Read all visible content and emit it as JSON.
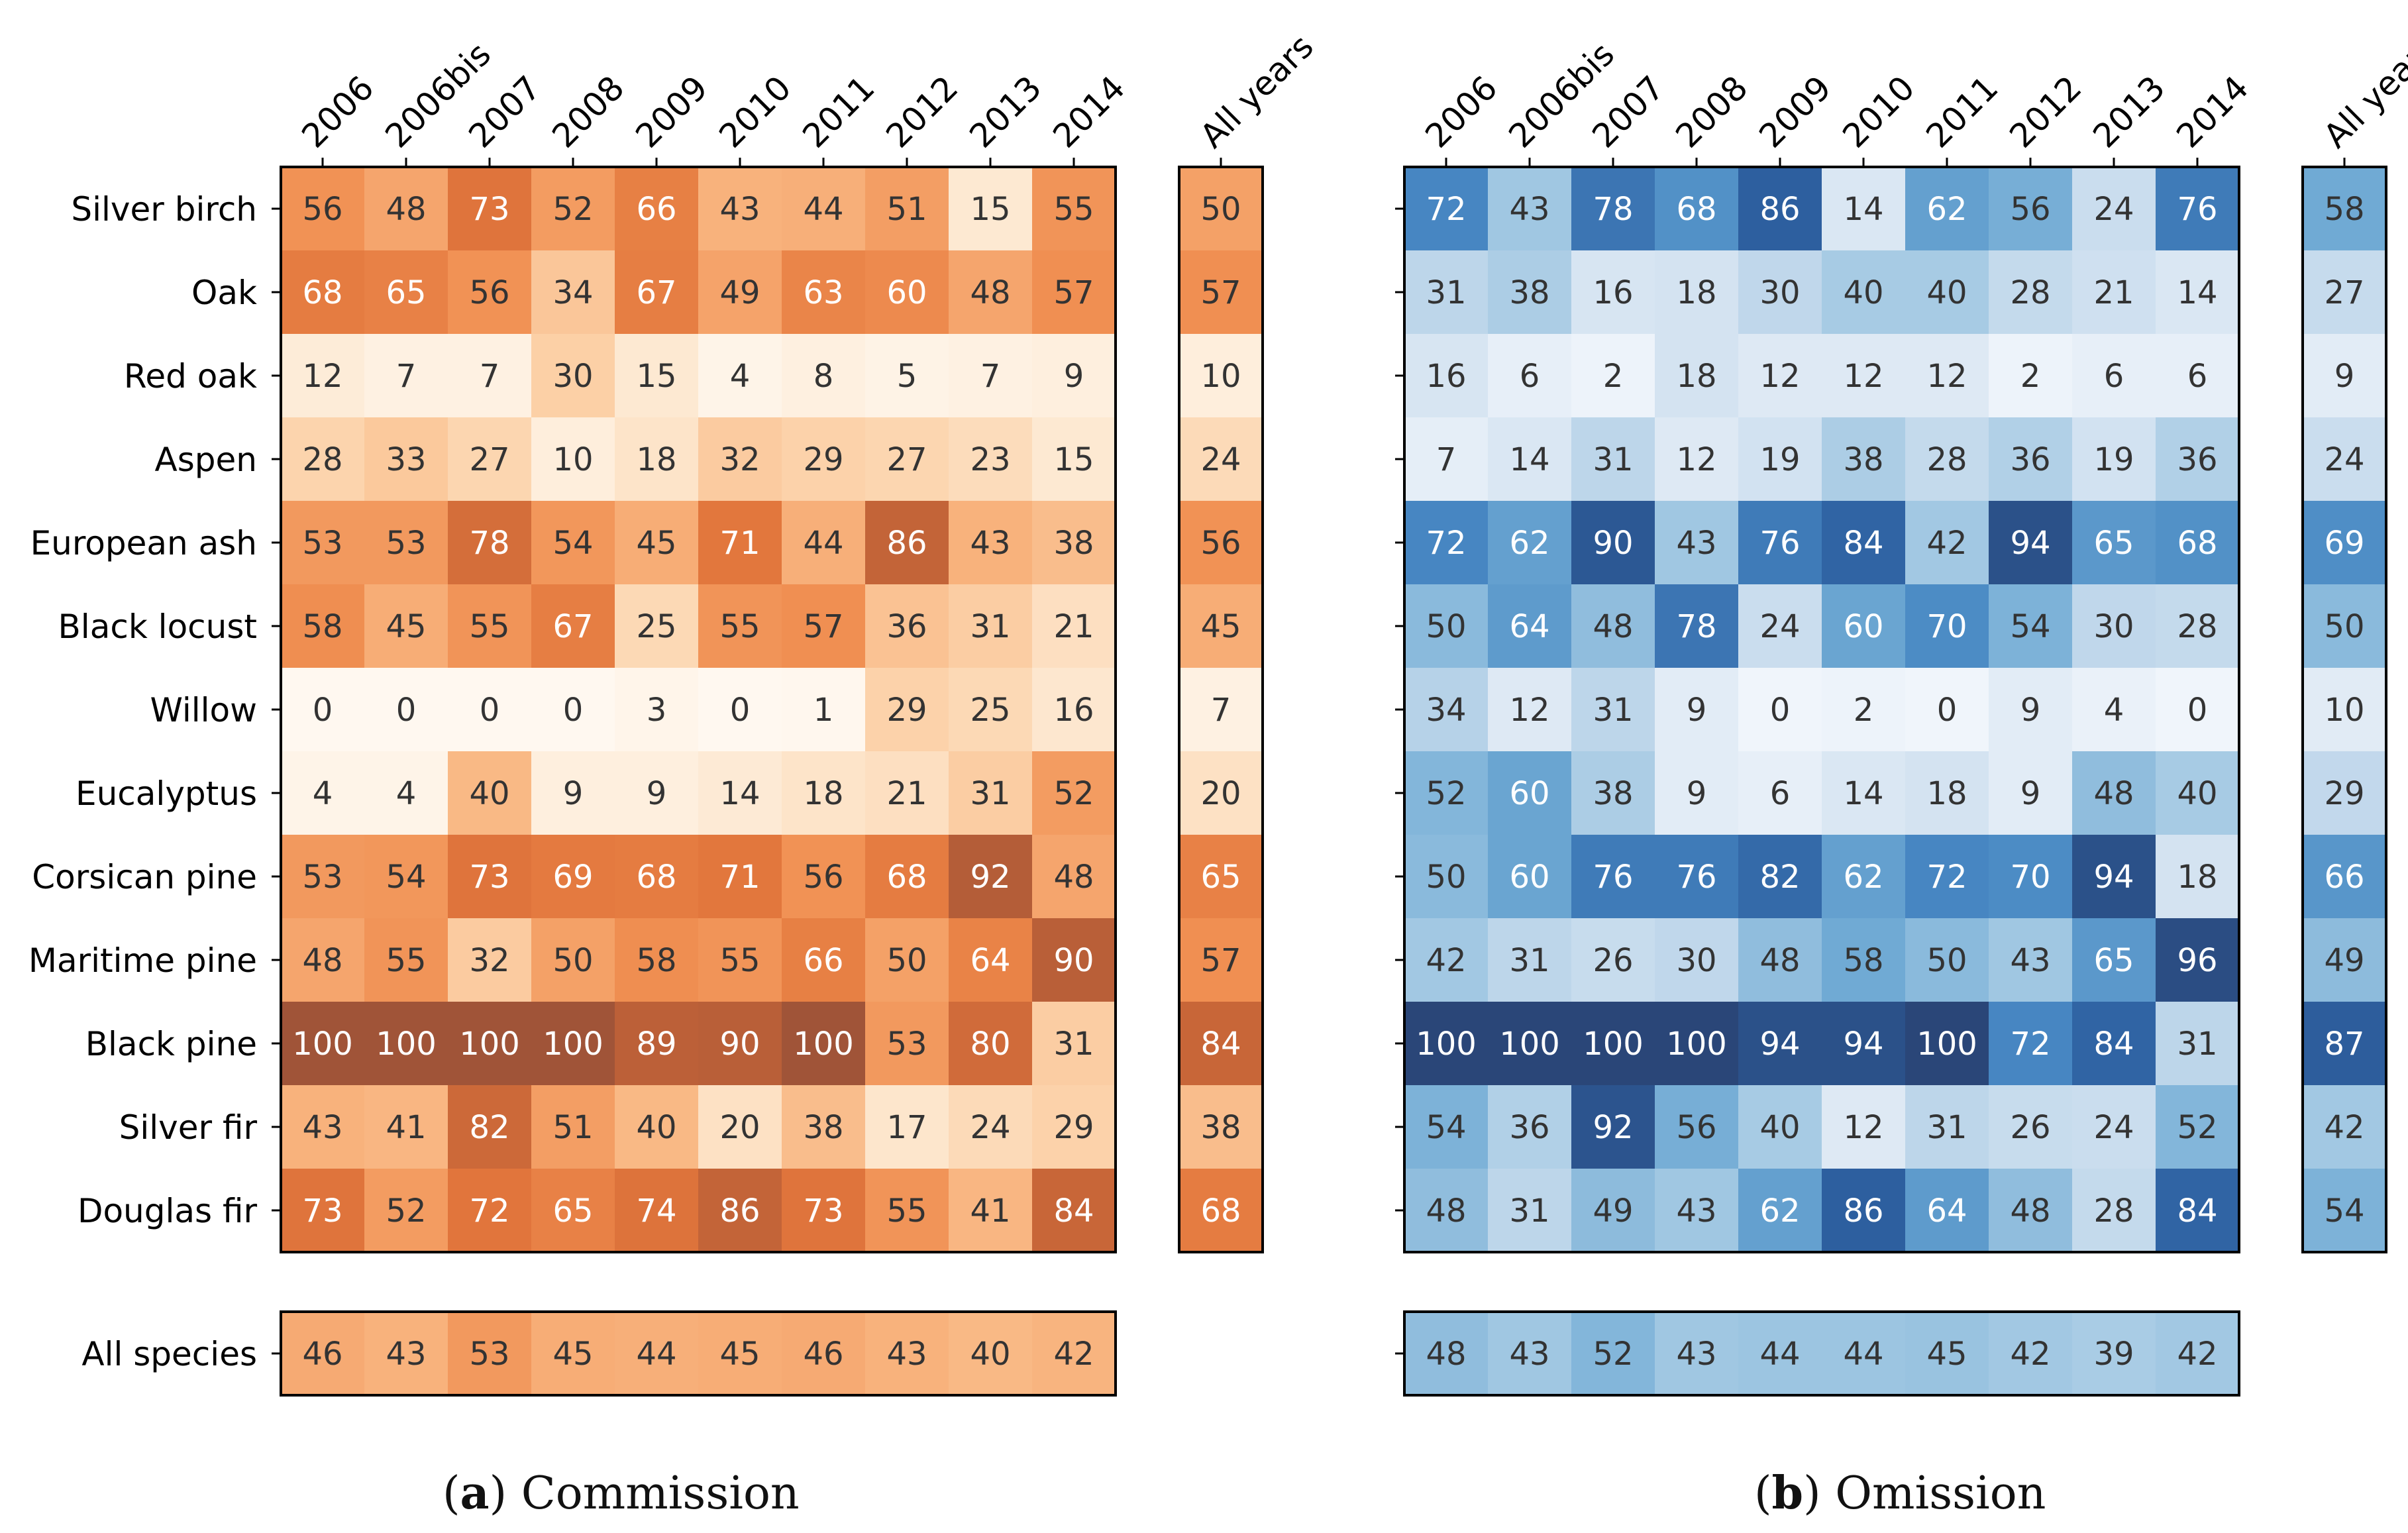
{
  "chart_data": [
    {
      "type": "heatmap",
      "panel": "a",
      "title": "Commission",
      "colormap": "oranges",
      "row_labels": [
        "Silver birch",
        "Oak",
        "Red oak",
        "Aspen",
        "European ash",
        "Black locust",
        "Willow",
        "Eucalyptus",
        "Corsican pine",
        "Maritime pine",
        "Black pine",
        "Silver fir",
        "Douglas fir"
      ],
      "col_labels": [
        "2006",
        "2006bis",
        "2007",
        "2008",
        "2009",
        "2010",
        "2011",
        "2012",
        "2013",
        "2014"
      ],
      "values": [
        [
          56,
          48,
          73,
          52,
          66,
          43,
          44,
          51,
          15,
          55
        ],
        [
          68,
          65,
          56,
          34,
          67,
          49,
          63,
          60,
          48,
          57
        ],
        [
          12,
          7,
          7,
          30,
          15,
          4,
          8,
          5,
          7,
          9
        ],
        [
          28,
          33,
          27,
          10,
          18,
          32,
          29,
          27,
          23,
          15
        ],
        [
          53,
          53,
          78,
          54,
          45,
          71,
          44,
          86,
          43,
          38
        ],
        [
          58,
          45,
          55,
          67,
          25,
          55,
          57,
          36,
          31,
          21
        ],
        [
          0,
          0,
          0,
          0,
          3,
          0,
          1,
          29,
          25,
          16
        ],
        [
          4,
          4,
          40,
          9,
          9,
          14,
          18,
          21,
          31,
          52
        ],
        [
          53,
          54,
          73,
          69,
          68,
          71,
          56,
          68,
          92,
          48
        ],
        [
          48,
          55,
          32,
          50,
          58,
          55,
          66,
          50,
          64,
          90
        ],
        [
          100,
          100,
          100,
          100,
          89,
          90,
          100,
          53,
          80,
          31
        ],
        [
          43,
          41,
          82,
          51,
          40,
          20,
          38,
          17,
          24,
          29
        ],
        [
          73,
          52,
          72,
          65,
          74,
          86,
          73,
          55,
          41,
          84
        ]
      ],
      "all_years_label": "All years",
      "all_years": [
        50,
        57,
        10,
        24,
        56,
        45,
        7,
        20,
        65,
        57,
        84,
        38,
        68
      ],
      "all_species_label": "All species",
      "all_species": [
        46,
        43,
        53,
        45,
        44,
        45,
        46,
        43,
        40,
        42
      ],
      "value_range": [
        0,
        100
      ]
    },
    {
      "type": "heatmap",
      "panel": "b",
      "title": "Omission",
      "colormap": "blues",
      "row_labels": [
        "Silver birch",
        "Oak",
        "Red oak",
        "Aspen",
        "European ash",
        "Black locust",
        "Willow",
        "Eucalyptus",
        "Corsican pine",
        "Maritime pine",
        "Black pine",
        "Silver fir",
        "Douglas fir"
      ],
      "col_labels": [
        "2006",
        "2006bis",
        "2007",
        "2008",
        "2009",
        "2010",
        "2011",
        "2012",
        "2013",
        "2014"
      ],
      "values": [
        [
          72,
          43,
          78,
          68,
          86,
          14,
          62,
          56,
          24,
          76
        ],
        [
          31,
          38,
          16,
          18,
          30,
          40,
          40,
          28,
          21,
          14
        ],
        [
          16,
          6,
          2,
          18,
          12,
          12,
          12,
          2,
          6,
          6
        ],
        [
          7,
          14,
          31,
          12,
          19,
          38,
          28,
          36,
          19,
          36
        ],
        [
          72,
          62,
          90,
          43,
          76,
          84,
          42,
          94,
          65,
          68
        ],
        [
          50,
          64,
          48,
          78,
          24,
          60,
          70,
          54,
          30,
          28
        ],
        [
          34,
          12,
          31,
          9,
          0,
          2,
          0,
          9,
          4,
          0
        ],
        [
          52,
          60,
          38,
          9,
          6,
          14,
          18,
          9,
          48,
          40
        ],
        [
          50,
          60,
          76,
          76,
          82,
          62,
          72,
          70,
          94,
          18
        ],
        [
          42,
          31,
          26,
          30,
          48,
          58,
          50,
          43,
          65,
          96
        ],
        [
          100,
          100,
          100,
          100,
          94,
          94,
          100,
          72,
          84,
          31
        ],
        [
          54,
          36,
          92,
          56,
          40,
          12,
          31,
          26,
          24,
          52
        ],
        [
          48,
          31,
          49,
          43,
          62,
          86,
          64,
          48,
          28,
          84
        ]
      ],
      "all_years_label": "All years",
      "all_years": [
        58,
        27,
        9,
        24,
        69,
        50,
        10,
        29,
        66,
        49,
        87,
        42,
        54
      ],
      "all_species": [
        48,
        43,
        52,
        43,
        44,
        44,
        45,
        42,
        39,
        42
      ],
      "value_range": [
        0,
        100
      ]
    }
  ],
  "captions": [
    {
      "letter": "a",
      "text": " Commission"
    },
    {
      "letter": "b",
      "text": " Omission"
    }
  ]
}
